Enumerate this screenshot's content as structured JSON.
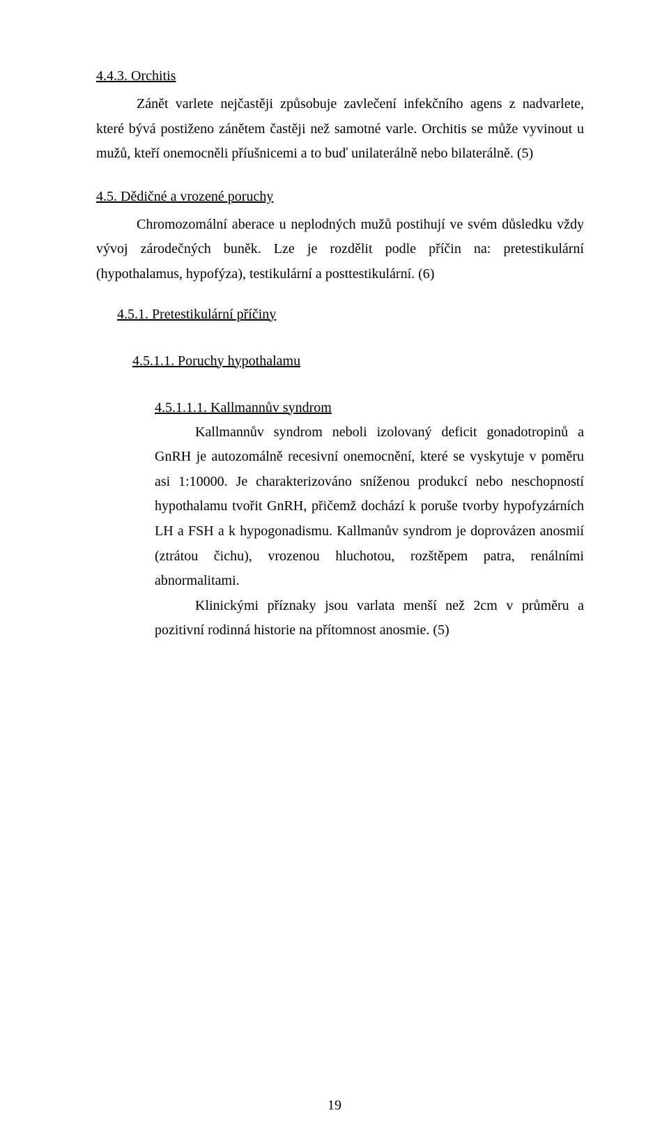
{
  "colors": {
    "background": "#ffffff",
    "text": "#000000"
  },
  "typography": {
    "font_family": "Times New Roman",
    "body_fontsize_pt": 12,
    "line_height": 1.78
  },
  "section_443": {
    "heading": "4.4.3. Orchitis",
    "paragraph": "Zánět varlete nejčastěji způsobuje zavlečení infekčního agens z nadvarlete, které bývá postiženo zánětem častěji než samotné varle. Orchitis se může vyvinout u mužů, kteří onemocněli příušnicemi a to buď unilaterálně nebo bilaterálně. (5)"
  },
  "section_45": {
    "heading": "4.5. Dědičné a vrozené poruchy",
    "paragraph": "Chromozomální aberace u neplodných mužů postihují ve svém důsledku vždy vývoj zárodečných buněk. Lze je rozdělit podle příčin na: pretestikulární (hypothalamus, hypofýza), testikulární a posttestikulární. (6)"
  },
  "section_451": {
    "heading": "4.5.1. Pretestikulární příčiny"
  },
  "section_4511": {
    "heading": "4.5.1.1. Poruchy hypothalamu"
  },
  "section_45111": {
    "heading": "4.5.1.1.1. Kallmannův syndrom",
    "paragraph1": "Kallmannův syndrom neboli izolovaný deficit gonadotropinů a GnRH je autozomálně recesivní onemocnění, které se vyskytuje v poměru asi 1:10000. Je charakterizováno sníženou produkcí nebo neschopností hypothalamu tvořit GnRH, přičemž dochází k poruše tvorby hypofyzárních LH a FSH a k hypogonadismu. Kallmanův syndrom je doprovázen anosmií (ztrátou čichu), vrozenou hluchotou, rozštěpem patra, renálními abnormalitami.",
    "paragraph2": "Klinickými příznaky jsou varlata menší než 2cm v průměru a pozitivní rodinná historie na přítomnost anosmie. (5)"
  },
  "page_number": "19"
}
